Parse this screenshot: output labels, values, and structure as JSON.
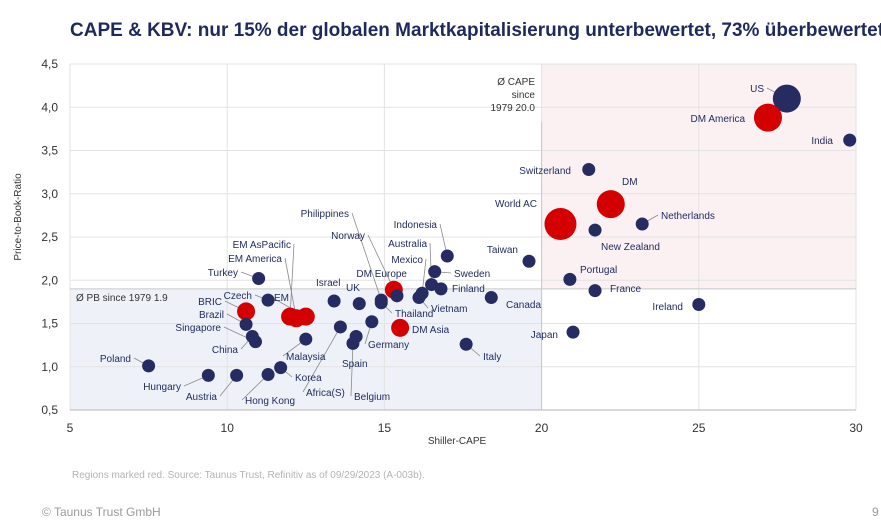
{
  "header": {
    "title": "CAPE & KBV: nur 15% der globalen Marktkapitalisierung unterbewertet, 73% überbewertet"
  },
  "source_note": "Regions marked red. Source: Taunus Trust, Refinitiv as of 09/29/2023 (A-003b).",
  "footer": {
    "copyright": "© Taunus Trust GmbH",
    "page": "9"
  },
  "colors": {
    "country": "#262c62",
    "region": "#d40000",
    "overvalued_zone": "#fbf1f2",
    "undervalued_zone": "#eef1f8",
    "grid": "#e3e3e3",
    "leader": "#8a8a8a"
  },
  "chart_data": {
    "type": "scatter",
    "title": "CAPE & KBV: nur 15% der globalen Marktkapitalisierung unterbewertet, 73% überbewertet",
    "xlabel": "Shiller-CAPE",
    "ylabel": "Price-to-Book-Ratio",
    "xlim": [
      5,
      30
    ],
    "ylim": [
      0.5,
      4.5
    ],
    "xticks": [
      5,
      10,
      15,
      20,
      25,
      30
    ],
    "xtick_labels": [
      "5",
      "10",
      "15",
      "20",
      "25",
      "30"
    ],
    "yticks": [
      0.5,
      1.0,
      1.5,
      2.0,
      2.5,
      3.0,
      3.5,
      4.0,
      4.5
    ],
    "ytick_labels": [
      "0,5",
      "1,0",
      "1,5",
      "2,0",
      "2,5",
      "3,0",
      "3,5",
      "4,0",
      "4,5"
    ],
    "grid": true,
    "reference_lines": {
      "cape_avg": {
        "value": 20.0,
        "label_lines": [
          "Ø CAPE",
          "since",
          "1979 20.0"
        ]
      },
      "pb_avg": {
        "value": 1.9,
        "label": "Ø PB since 1979 1.9"
      }
    },
    "points": [
      {
        "name": "US",
        "x": 27.8,
        "y": 4.1,
        "size": 3,
        "type": "region",
        "is_region": false
      },
      {
        "name": "DM America",
        "x": 27.2,
        "y": 3.88,
        "size": 3,
        "is_region": true
      },
      {
        "name": "India",
        "x": 29.8,
        "y": 3.62,
        "size": 1,
        "is_region": false
      },
      {
        "name": "Switzerland",
        "x": 21.5,
        "y": 3.28,
        "size": 1,
        "is_region": false
      },
      {
        "name": "DM",
        "x": 22.2,
        "y": 2.88,
        "size": 3,
        "is_region": true
      },
      {
        "name": "World AC",
        "x": 20.6,
        "y": 2.65,
        "size": 4,
        "is_region": true
      },
      {
        "name": "Netherlands",
        "x": 23.2,
        "y": 2.65,
        "size": 1,
        "is_region": false
      },
      {
        "name": "New Zealand",
        "x": 21.7,
        "y": 2.58,
        "size": 1,
        "is_region": false
      },
      {
        "name": "Taiwan",
        "x": 19.6,
        "y": 2.22,
        "size": 1,
        "is_region": false
      },
      {
        "name": "Portugal",
        "x": 20.9,
        "y": 2.01,
        "size": 1,
        "is_region": false
      },
      {
        "name": "France",
        "x": 21.7,
        "y": 1.88,
        "size": 1,
        "is_region": false
      },
      {
        "name": "Canada",
        "x": 18.4,
        "y": 1.8,
        "size": 1,
        "is_region": false
      },
      {
        "name": "Ireland",
        "x": 25.0,
        "y": 1.72,
        "size": 1,
        "is_region": false
      },
      {
        "name": "Japan",
        "x": 21.0,
        "y": 1.4,
        "size": 1,
        "is_region": false
      },
      {
        "name": "Italy",
        "x": 17.6,
        "y": 1.26,
        "size": 1,
        "is_region": false
      },
      {
        "name": "Indonesia",
        "x": 17.0,
        "y": 2.28,
        "size": 1,
        "is_region": false
      },
      {
        "name": "Sweden",
        "x": 16.6,
        "y": 2.1,
        "size": 1,
        "is_region": false
      },
      {
        "name": "Finland",
        "x": 16.8,
        "y": 1.9,
        "size": 1,
        "is_region": false
      },
      {
        "name": "Australia",
        "x": 16.5,
        "y": 1.95,
        "size": 1,
        "is_region": false
      },
      {
        "name": "Mexico",
        "x": 16.2,
        "y": 1.85,
        "size": 1,
        "is_region": false
      },
      {
        "name": "Vietnam",
        "x": 16.1,
        "y": 1.8,
        "size": 1,
        "is_region": false
      },
      {
        "name": "DM Europe",
        "x": 15.3,
        "y": 1.89,
        "size": 2,
        "is_region": true
      },
      {
        "name": "Norway",
        "x": 15.4,
        "y": 1.82,
        "size": 1,
        "is_region": false
      },
      {
        "name": "Philippines",
        "x": 14.9,
        "y": 1.77,
        "size": 1,
        "is_region": false
      },
      {
        "name": "Thailand",
        "x": 14.9,
        "y": 1.74,
        "size": 1,
        "is_region": false
      },
      {
        "name": "UK",
        "x": 14.2,
        "y": 1.73,
        "size": 1,
        "is_region": false
      },
      {
        "name": "Israel",
        "x": 13.4,
        "y": 1.76,
        "size": 1,
        "is_region": false
      },
      {
        "name": "DM Asia",
        "x": 15.5,
        "y": 1.45,
        "size": 2,
        "is_region": true
      },
      {
        "name": "Germany",
        "x": 14.6,
        "y": 1.52,
        "size": 1,
        "is_region": false
      },
      {
        "name": "Africa(S)",
        "x": 13.6,
        "y": 1.46,
        "size": 1,
        "is_region": false
      },
      {
        "name": "Spain",
        "x": 14.1,
        "y": 1.35,
        "size": 1,
        "is_region": false
      },
      {
        "name": "Belgium",
        "x": 14.0,
        "y": 1.27,
        "size": 1,
        "is_region": false
      },
      {
        "name": "Malaysia",
        "x": 12.5,
        "y": 1.32,
        "size": 1,
        "is_region": false
      },
      {
        "name": "EM AsPacific",
        "x": 12.0,
        "y": 1.58,
        "size": 2,
        "is_region": true
      },
      {
        "name": "EM America",
        "x": 12.2,
        "y": 1.56,
        "size": 2,
        "is_region": true
      },
      {
        "name": "EM",
        "x": 12.5,
        "y": 1.58,
        "size": 2,
        "is_region": true
      },
      {
        "name": "Czech",
        "x": 11.3,
        "y": 1.77,
        "size": 1,
        "is_region": false
      },
      {
        "name": "Turkey",
        "x": 11.0,
        "y": 2.02,
        "size": 1,
        "is_region": false
      },
      {
        "name": "BRIC",
        "x": 10.6,
        "y": 1.64,
        "size": 2,
        "is_region": true
      },
      {
        "name": "Brazil",
        "x": 10.6,
        "y": 1.49,
        "size": 1,
        "is_region": false
      },
      {
        "name": "Singapore",
        "x": 10.9,
        "y": 1.29,
        "size": 1,
        "is_region": false
      },
      {
        "name": "China",
        "x": 10.8,
        "y": 1.35,
        "size": 1,
        "is_region": false
      },
      {
        "name": "Korea",
        "x": 11.7,
        "y": 0.99,
        "size": 1,
        "is_region": false
      },
      {
        "name": "Hong Kong",
        "x": 11.3,
        "y": 0.91,
        "size": 1,
        "is_region": false
      },
      {
        "name": "Austria",
        "x": 10.3,
        "y": 0.9,
        "size": 1,
        "is_region": false
      },
      {
        "name": "Hungary",
        "x": 9.4,
        "y": 0.9,
        "size": 1,
        "is_region": false
      },
      {
        "name": "Poland",
        "x": 7.5,
        "y": 1.01,
        "size": 1,
        "is_region": false
      }
    ]
  }
}
